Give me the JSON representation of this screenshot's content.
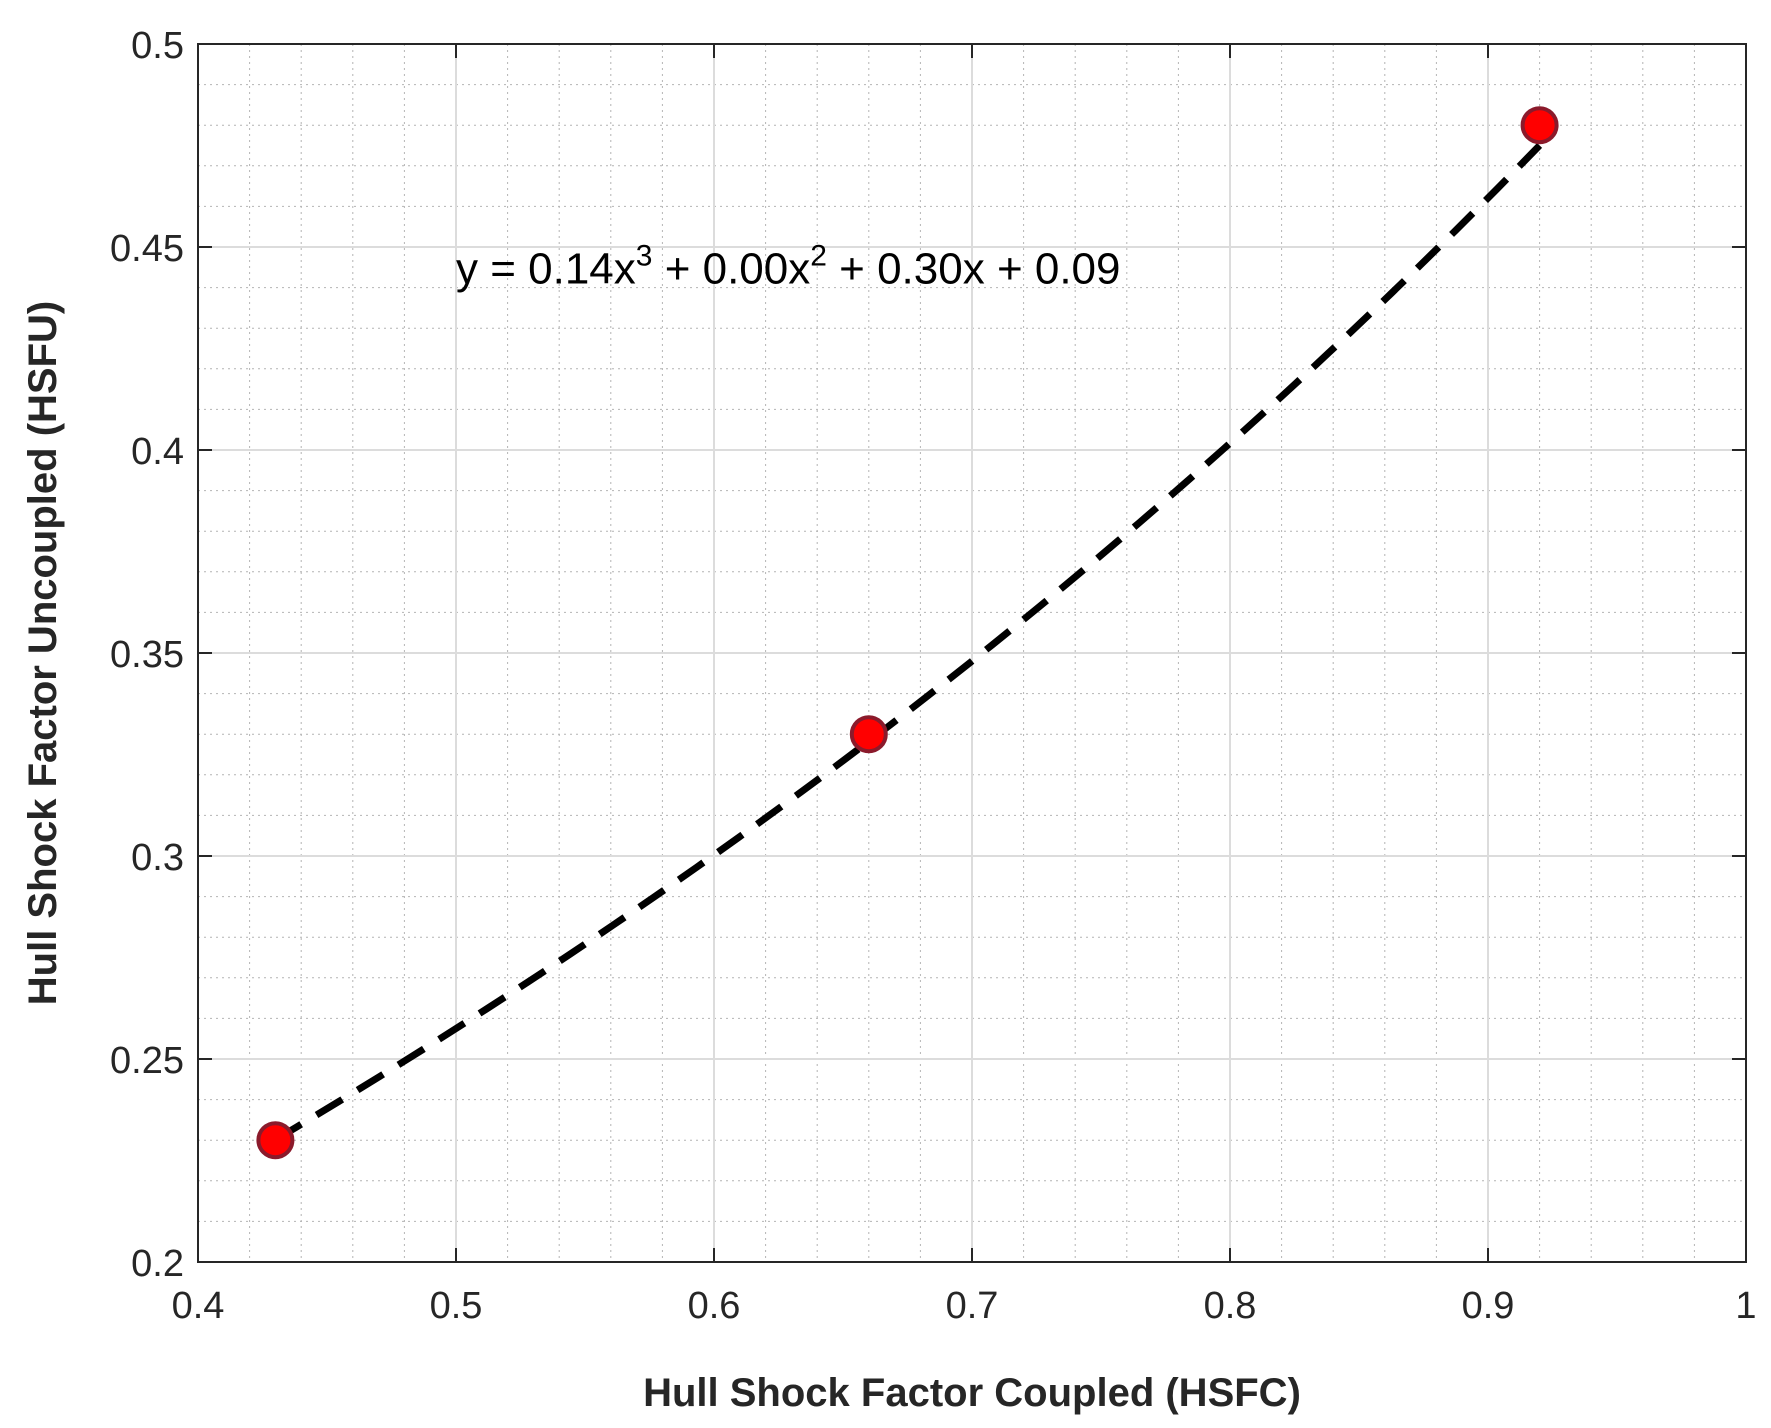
{
  "chart_data": {
    "type": "scatter",
    "title": "",
    "xlabel": "Hull Shock Factor Coupled (HSFC)",
    "ylabel": "Hull Shock Factor Uncoupled (HSFU)",
    "xlim": [
      0.4,
      1.0
    ],
    "ylim": [
      0.2,
      0.5
    ],
    "xticks": [
      0.4,
      0.5,
      0.6,
      0.7,
      0.8,
      0.9,
      1.0
    ],
    "xtick_labels": [
      "0.4",
      "0.5",
      "0.6",
      "0.7",
      "0.8",
      "0.9",
      "1"
    ],
    "yticks": [
      0.2,
      0.25,
      0.3,
      0.35,
      0.4,
      0.45,
      0.5
    ],
    "ytick_labels": [
      "0.2",
      "0.25",
      "0.3",
      "0.35",
      "0.4",
      "0.45",
      "0.5"
    ],
    "grid": true,
    "minor_grid": true,
    "points": {
      "x": [
        0.43,
        0.66,
        0.92
      ],
      "y": [
        0.23,
        0.33,
        0.48
      ]
    },
    "fit": {
      "style": "dashed",
      "coefficients": [
        0.14,
        0.0,
        0.3,
        0.09
      ],
      "x_range": [
        0.43,
        0.92
      ]
    },
    "annotation": {
      "parts": [
        "y = 0.14x",
        "3",
        " + 0.00x",
        "2",
        " + 0.30x + 0.09"
      ],
      "x": 0.5,
      "y": 0.445
    },
    "colors": {
      "marker_fill": "#ff0000",
      "marker_edge": "#8b1a2b",
      "fit_line": "#000000",
      "axes": "#262626",
      "major_grid": "#dcdcdc",
      "minor_grid": "#b4b4b4"
    }
  }
}
